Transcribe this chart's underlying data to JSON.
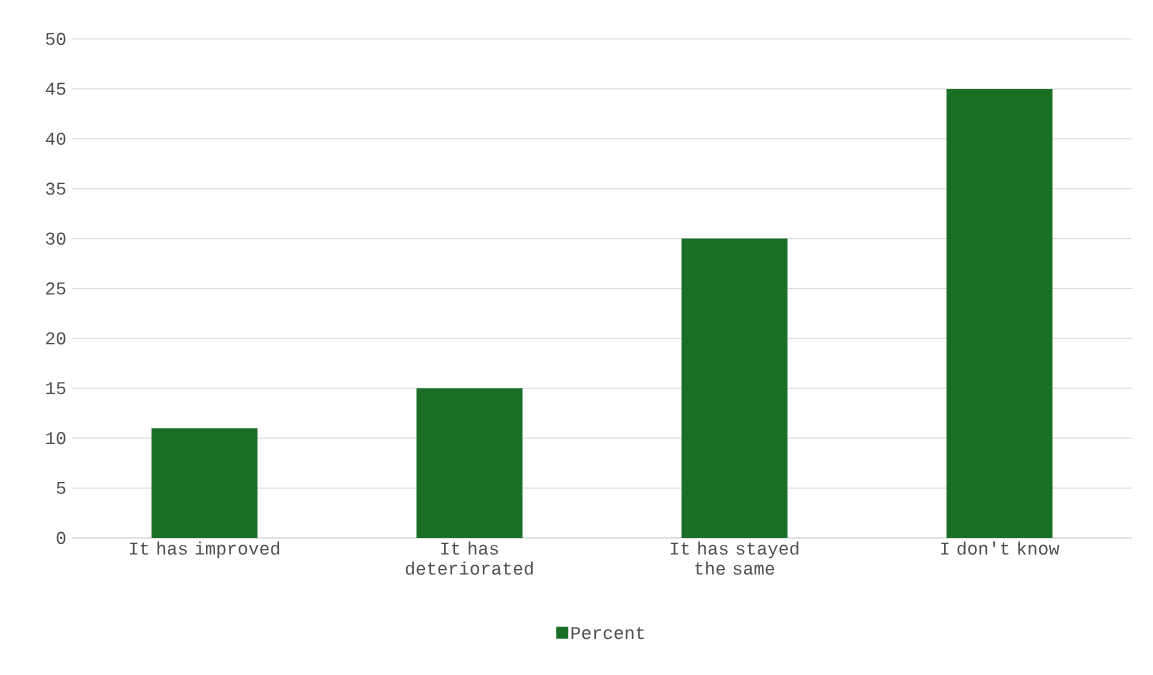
{
  "chart_data": {
    "type": "bar",
    "categories": [
      "It has improved",
      "It has deteriorated",
      "It has stayed the same",
      "I don't know"
    ],
    "series": [
      {
        "name": "Percent",
        "color": "#1b6e26",
        "values": [
          11,
          15,
          30,
          45
        ]
      }
    ],
    "ylim": [
      0,
      50
    ],
    "yticks": [
      0,
      5,
      10,
      15,
      20,
      25,
      30,
      35,
      40,
      45,
      50
    ],
    "grid": "y",
    "legend": "bottom"
  }
}
